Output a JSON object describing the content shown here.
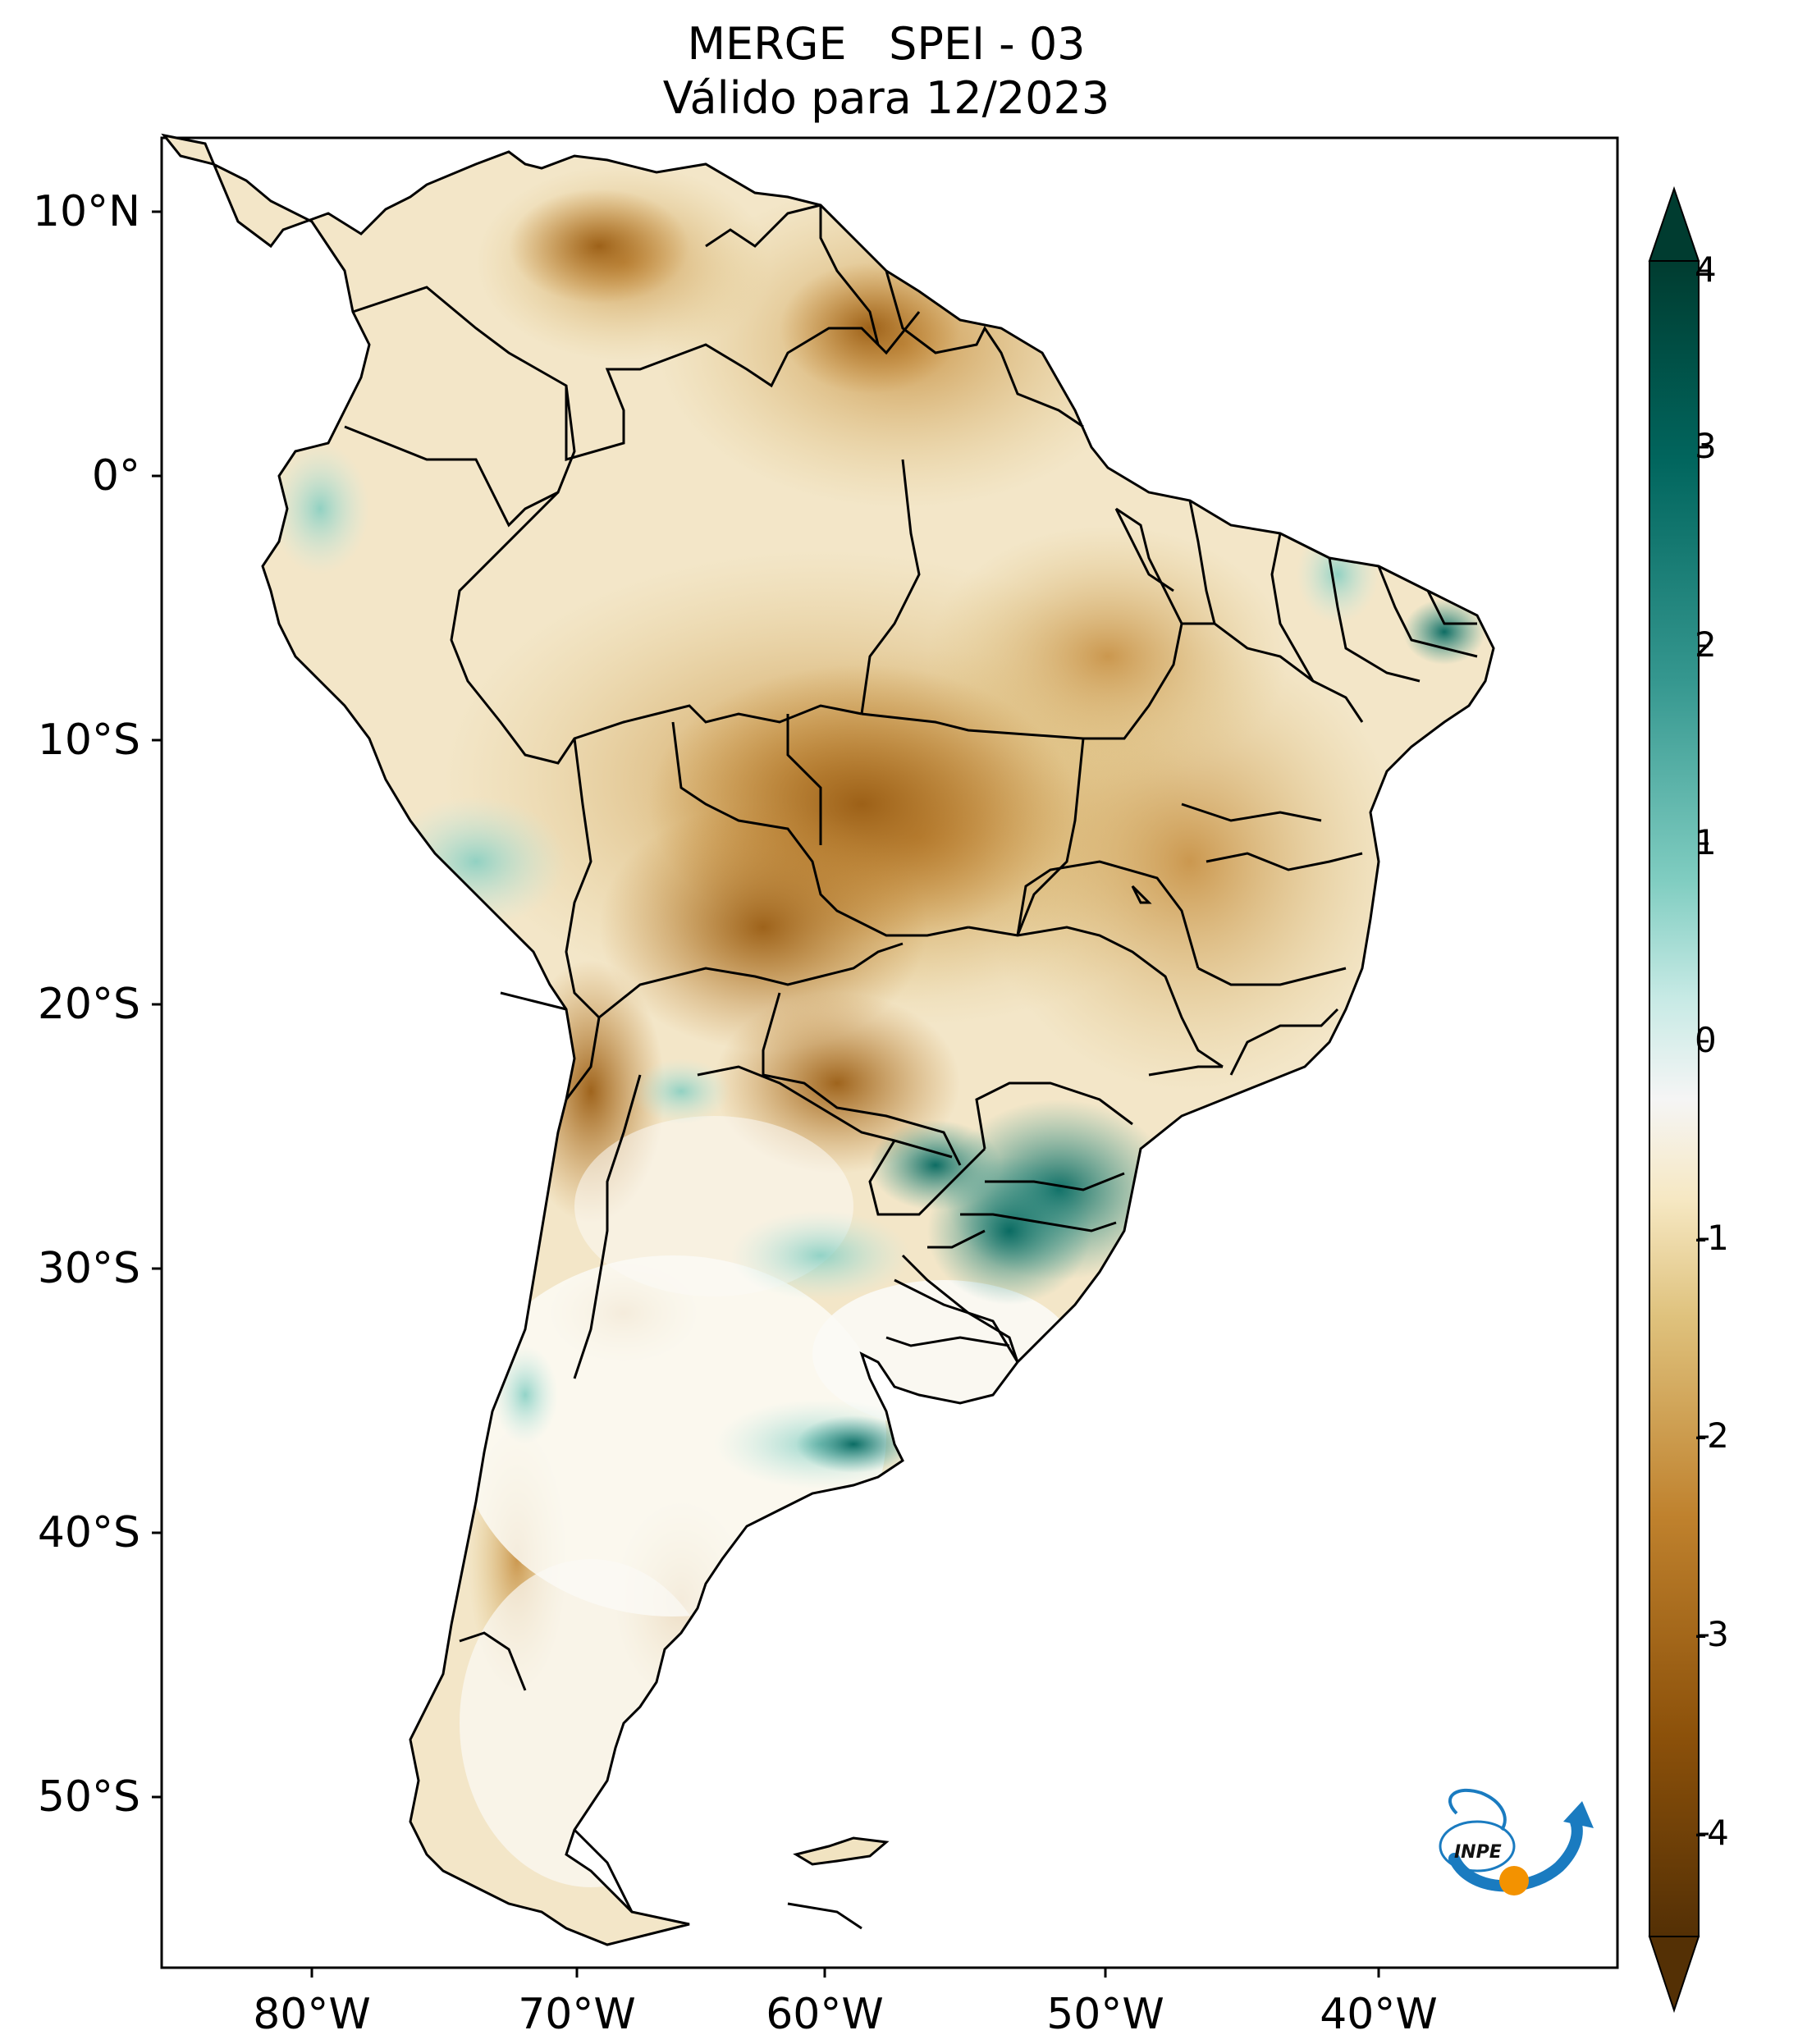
{
  "title": {
    "line1": "MERGE   SPEI - 03",
    "line2": "Válido para 12/2023"
  },
  "axes": {
    "lat_labels": [
      "10°N",
      "0°",
      "10°S",
      "20°S",
      "30°S",
      "40°S",
      "50°S"
    ],
    "lon_labels": [
      "80°W",
      "70°W",
      "60°W",
      "50°W",
      "40°W"
    ]
  },
  "colorbar": {
    "ticks": [
      "4",
      "3",
      "2",
      "1",
      "0",
      "-1",
      "-2",
      "-3",
      "-4"
    ],
    "range": [
      -4,
      4
    ],
    "colors": {
      "dry_extreme": "#543005",
      "dry_strong": "#8c510a",
      "dry_moderate": "#bf812d",
      "dry_mild": "#dfc27d",
      "dry_weak": "#f6e8c3",
      "neutral": "#f5f5f5",
      "wet_weak": "#c7eae5",
      "wet_mild": "#80cdc1",
      "wet_moderate": "#35978f",
      "wet_strong": "#01665e",
      "wet_extreme": "#003c30"
    }
  },
  "logo": {
    "text": "INPE",
    "colors": {
      "arc": "#1a7bc0",
      "dot": "#f39200"
    }
  }
}
